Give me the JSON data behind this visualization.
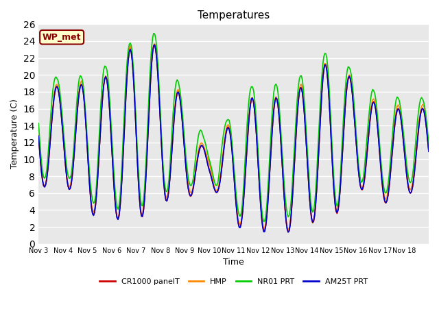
{
  "title": "Temperatures",
  "xlabel": "Time",
  "ylabel": "Temperature (C)",
  "ylim": [
    0,
    26
  ],
  "annotation_text": "WP_met",
  "annotation_facecolor": "#ffffcc",
  "annotation_edgecolor": "#8b0000",
  "annotation_textcolor": "#8b0000",
  "bg_color": "#e8e8e8",
  "grid_color": "#ffffff",
  "line_colors": {
    "CR1000_panelT": "#cc0000",
    "HMP": "#ff8800",
    "NR01_PRT": "#00cc00",
    "AM25T_PRT": "#0000cc"
  },
  "legend_labels": [
    "CR1000 panelT",
    "HMP",
    "NR01 PRT",
    "AM25T PRT"
  ],
  "line_width": 1.2,
  "x_tick_labels": [
    "Nov 3",
    "Nov 4",
    "Nov 5",
    "Nov 6",
    "Nov 7",
    "Nov 8",
    "Nov 9",
    "Nov 10",
    "Nov 11",
    "Nov 12",
    "Nov 13",
    "Nov 14",
    "Nov 15",
    "Nov 16",
    "Nov 17",
    "Nov 18"
  ],
  "n_days": 16,
  "samples_per_day": 24
}
